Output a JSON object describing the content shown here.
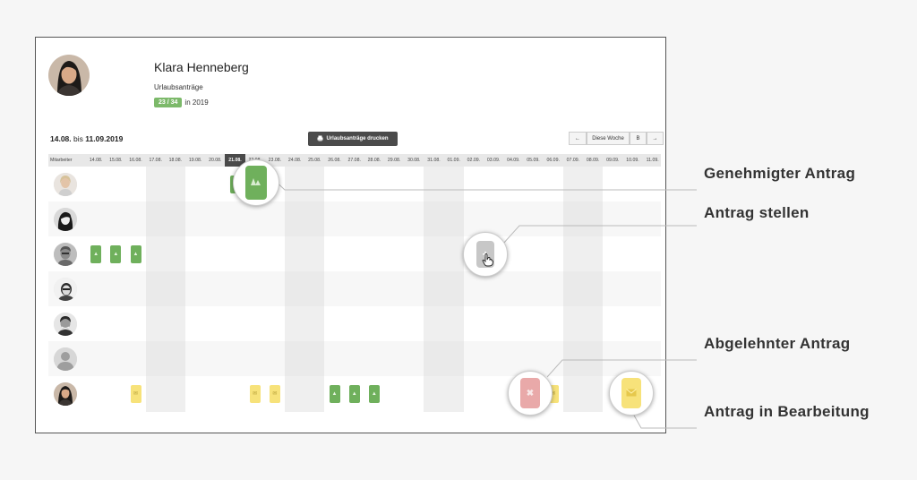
{
  "user": {
    "name": "Klara Henneberg",
    "requests_title": "Urlaubsanträge",
    "count_badge": "23 / 34",
    "year_text": "in 2019"
  },
  "range": {
    "from": "14.08.",
    "bis": "bis",
    "to": "11.09.2019"
  },
  "toolbar": {
    "print_label": "Urlaubsanträge drucken",
    "prev_label": "←",
    "this_week_label": "Diese Woche",
    "b_label": "B",
    "next_label": "→"
  },
  "table": {
    "employee_header": "Mitarbeiter",
    "dates": [
      "14.08.",
      "15.08.",
      "16.08.",
      "17.08.",
      "18.08.",
      "19.08.",
      "20.08.",
      "21.08.",
      "22.08.",
      "23.08.",
      "24.08.",
      "25.08.",
      "26.08.",
      "27.08.",
      "28.08.",
      "29.08.",
      "30.08.",
      "31.08.",
      "01.09.",
      "02.09.",
      "03.09.",
      "04.09.",
      "05.09.",
      "06.09.",
      "07.09.",
      "08.09.",
      "09.09.",
      "10.09.",
      "11.09."
    ],
    "today_index": 7,
    "weekend_indices": [
      3,
      10,
      17,
      24
    ],
    "rows": [
      {
        "requests": [
          {
            "day": 7,
            "status": "approved"
          }
        ]
      },
      {
        "requests": []
      },
      {
        "requests": [
          {
            "day": 0,
            "status": "approved"
          },
          {
            "day": 1,
            "status": "approved"
          },
          {
            "day": 2,
            "status": "approved"
          }
        ]
      },
      {
        "requests": []
      },
      {
        "requests": []
      },
      {
        "requests": []
      },
      {
        "requests": [
          {
            "day": 2,
            "status": "pending"
          },
          {
            "day": 8,
            "status": "pending"
          },
          {
            "day": 9,
            "status": "pending"
          },
          {
            "day": 12,
            "status": "approved"
          },
          {
            "day": 13,
            "status": "approved"
          },
          {
            "day": 14,
            "status": "approved"
          },
          {
            "day": 23,
            "status": "pending"
          }
        ]
      }
    ]
  },
  "callouts": {
    "approved": "Genehmigter Antrag",
    "create": "Antrag stellen",
    "rejected": "Abgelehnter Antrag",
    "pending": "Antrag in Bearbeitung"
  },
  "colors": {
    "approved": "#6fb05c",
    "pending": "#f7e27a",
    "rejected": "#e9a9a9",
    "today": "#4a4a4a"
  }
}
